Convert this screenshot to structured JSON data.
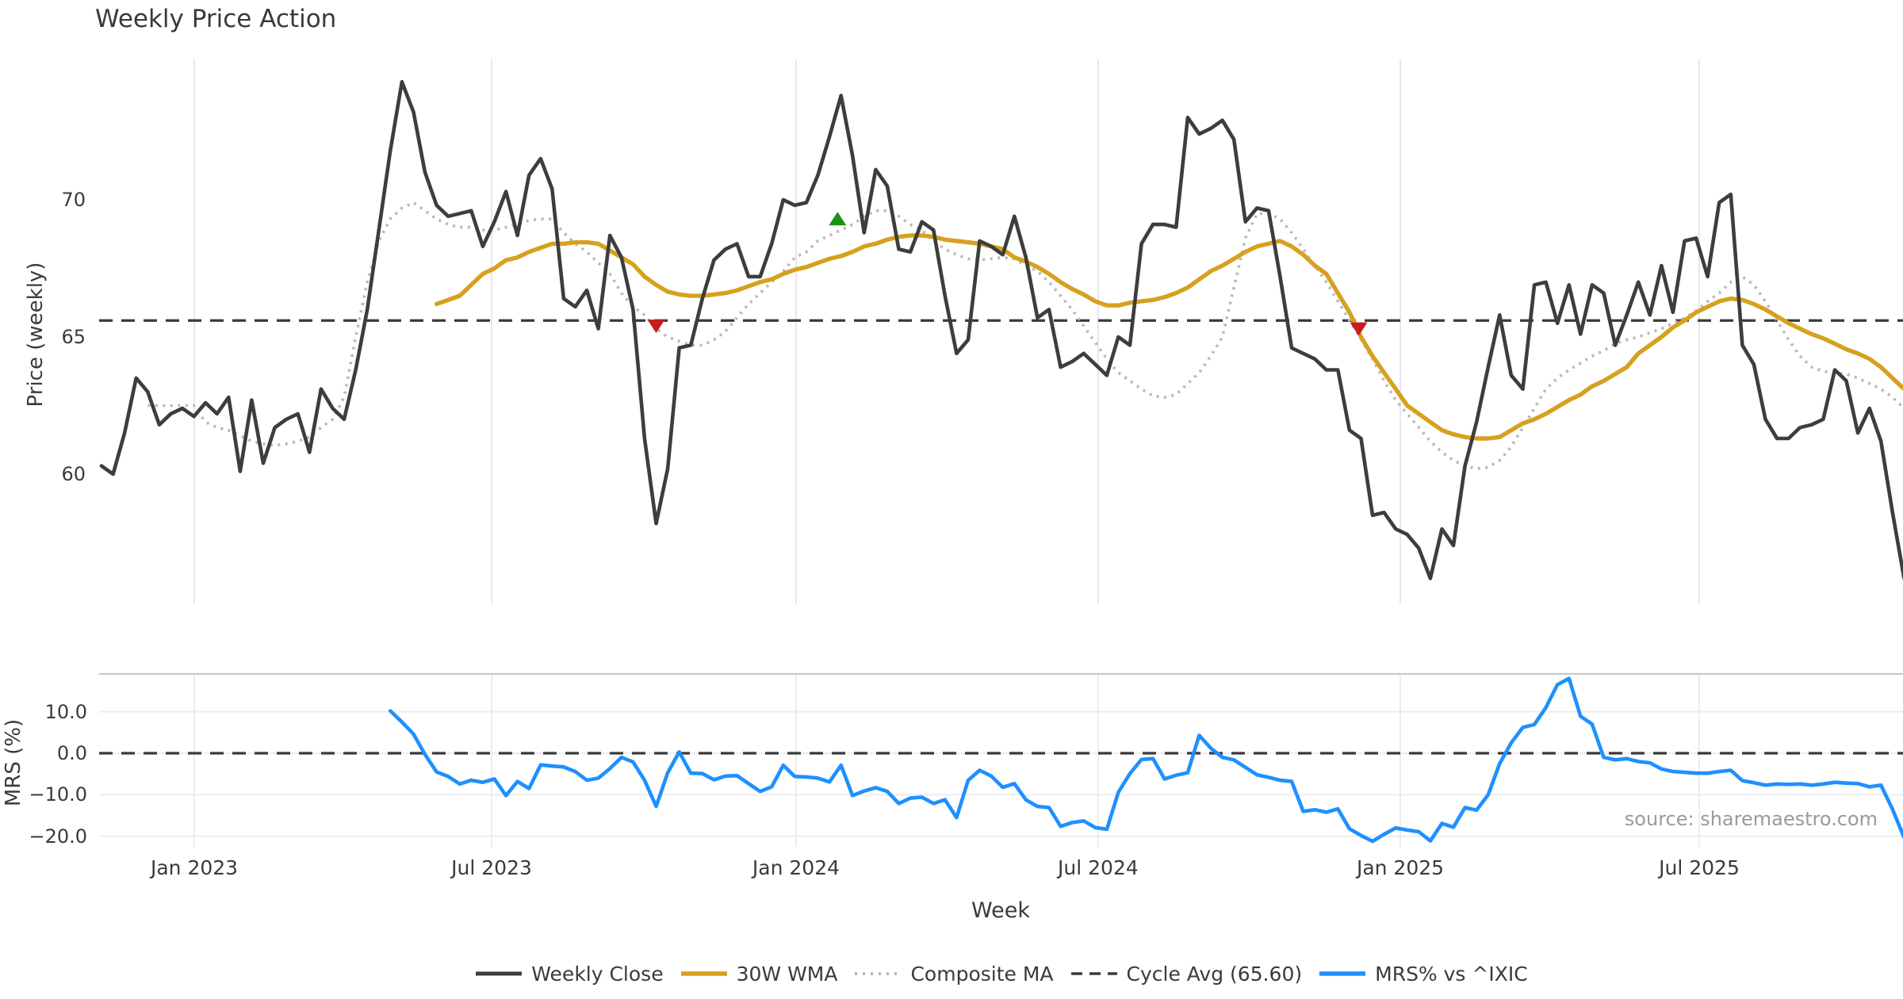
{
  "title": "Weekly Price Action",
  "xaxis": {
    "title": "Week",
    "ticks": [
      {
        "label": "Jan 2023",
        "week": 8.03
      },
      {
        "label": "Jul 2023",
        "week": 33.76
      },
      {
        "label": "Jan 2024",
        "week": 60.11
      },
      {
        "label": "Jul 2024",
        "week": 86.25
      },
      {
        "label": "Jan 2025",
        "week": 112.4
      },
      {
        "label": "Jul 2025",
        "week": 138.27
      }
    ]
  },
  "price_chart": {
    "ylabel": "Price (weekly)",
    "yticks": [
      {
        "v": 70,
        "label": "70"
      },
      {
        "v": 65,
        "label": "65"
      },
      {
        "v": 60,
        "label": "60"
      }
    ]
  },
  "mrs_chart": {
    "ylabel": "MRS (%)",
    "yticks": [
      {
        "v": 10,
        "label": "10.0"
      },
      {
        "v": 0,
        "label": "0.0"
      },
      {
        "v": -10,
        "label": "−10.0"
      },
      {
        "v": -20,
        "label": "−20.0"
      }
    ],
    "source": "source: sharemaestro.com"
  },
  "legend": {
    "items": [
      {
        "label": "Weekly Close",
        "series": "close"
      },
      {
        "label": "30W WMA",
        "series": "wma"
      },
      {
        "label": "Composite MA",
        "series": "composite"
      },
      {
        "label": "Cycle Avg (65.60)",
        "series": "cycle"
      },
      {
        "label": "MRS% vs ^IXIC",
        "series": "mrs"
      }
    ]
  },
  "colors": {
    "close": "#3d3d3d",
    "wma": "#d6a11d",
    "composite": "#b8b8b8",
    "cycle": "#3a3a3a",
    "mrs": "#1e90ff",
    "marker_up": "#149414",
    "marker_down": "#c81d1d",
    "grid": "#e7e7ec",
    "grid_h": "#ececf0",
    "spine": "#c9c9cd",
    "text": "#3a3a3a",
    "source_text": "#9a9a9a"
  },
  "chart_data": {
    "type": "line",
    "x_unit": "week_index",
    "cycle_avg": 65.6,
    "panels": [
      {
        "id": "price",
        "ylabel": "Price (weekly)",
        "ylim": [
          55.3,
          75.2
        ],
        "yticks": [
          60,
          65,
          70
        ],
        "series": [
          {
            "name": "Weekly Close",
            "key": "close",
            "start": 0,
            "values": [
              60.3,
              60.0,
              61.5,
              63.5,
              63.0,
              61.8,
              62.2,
              62.4,
              62.1,
              62.6,
              62.2,
              62.8,
              60.1,
              62.7,
              60.4,
              61.7,
              62.0,
              62.2,
              60.8,
              63.1,
              62.4,
              62.0,
              63.8,
              66.0,
              68.9,
              71.8,
              74.3,
              73.2,
              71.0,
              69.8,
              69.4,
              69.5,
              69.6,
              68.3,
              69.2,
              70.3,
              68.7,
              70.9,
              71.5,
              70.4,
              66.4,
              66.1,
              66.7,
              65.3,
              68.7,
              67.9,
              66.0,
              61.3,
              58.2,
              60.2,
              64.6,
              64.7,
              66.4,
              67.8,
              68.2,
              68.4,
              67.2,
              67.2,
              68.4,
              70.0,
              69.8,
              69.9,
              70.9,
              72.3,
              73.8,
              71.6,
              68.8,
              71.1,
              70.5,
              68.2,
              68.1,
              69.2,
              68.9,
              66.5,
              64.4,
              64.9,
              68.5,
              68.3,
              68.0,
              69.4,
              67.9,
              65.7,
              66.0,
              63.9,
              64.1,
              64.4,
              64.0,
              63.6,
              65.0,
              64.7,
              68.4,
              69.1,
              69.1,
              69.0,
              73.0,
              72.4,
              72.6,
              72.9,
              72.2,
              69.2,
              69.7,
              69.6,
              67.2,
              64.6,
              64.4,
              64.2,
              63.8,
              63.8,
              61.6,
              61.3,
              58.5,
              58.6,
              58.0,
              57.8,
              57.3,
              56.2,
              58.0,
              57.4,
              60.3,
              61.9,
              63.9,
              65.8,
              63.6,
              63.1,
              66.9,
              67.0,
              65.5,
              66.9,
              65.1,
              66.9,
              66.6,
              64.7,
              65.8,
              67.0,
              65.8,
              67.6,
              65.9,
              68.5,
              68.6,
              67.2,
              69.9,
              70.2,
              64.7,
              64.0,
              62.0,
              61.3,
              61.3,
              61.7,
              61.8,
              62.0,
              63.8,
              63.4,
              61.5,
              62.4,
              61.2,
              58.6,
              56.2
            ]
          },
          {
            "name": "30W WMA",
            "key": "wma",
            "start": 29,
            "values": [
              66.2,
              66.35,
              66.5,
              66.9,
              67.3,
              67.5,
              67.8,
              67.9,
              68.1,
              68.25,
              68.4,
              68.4,
              68.45,
              68.45,
              68.4,
              68.15,
              67.9,
              67.65,
              67.2,
              66.9,
              66.65,
              66.55,
              66.5,
              66.5,
              66.55,
              66.6,
              66.7,
              66.85,
              67.0,
              67.1,
              67.3,
              67.45,
              67.55,
              67.7,
              67.85,
              67.95,
              68.1,
              68.3,
              68.4,
              68.55,
              68.65,
              68.7,
              68.7,
              68.65,
              68.55,
              68.5,
              68.45,
              68.4,
              68.3,
              68.2,
              67.9,
              67.75,
              67.55,
              67.3,
              67.0,
              66.75,
              66.55,
              66.3,
              66.15,
              66.15,
              66.25,
              66.3,
              66.35,
              66.45,
              66.6,
              66.8,
              67.1,
              67.4,
              67.6,
              67.85,
              68.1,
              68.3,
              68.4,
              68.5,
              68.3,
              68.0,
              67.6,
              67.3,
              66.6,
              65.9,
              65.0,
              64.3,
              63.7,
              63.1,
              62.5,
              62.2,
              61.9,
              61.6,
              61.45,
              61.35,
              61.3,
              61.3,
              61.35,
              61.6,
              61.85,
              62.0,
              62.2,
              62.45,
              62.7,
              62.9,
              63.2,
              63.4,
              63.65,
              63.9,
              64.4,
              64.7,
              65.0,
              65.35,
              65.6,
              65.9,
              66.1,
              66.3,
              66.4,
              66.35,
              66.2,
              66.0,
              65.75,
              65.5,
              65.3,
              65.1,
              64.95,
              64.75,
              64.55,
              64.4,
              64.2,
              63.9,
              63.5,
              63.1
            ]
          },
          {
            "name": "Composite MA",
            "key": "composite",
            "start": 4,
            "values": [
              62.5,
              62.5,
              62.5,
              62.5,
              62.5,
              61.9,
              61.7,
              61.6,
              61.4,
              61.2,
              61.1,
              61.05,
              61.1,
              61.2,
              61.35,
              61.7,
              62.0,
              62.8,
              65.0,
              67.0,
              68.5,
              69.3,
              69.7,
              69.9,
              69.6,
              69.3,
              69.1,
              69.0,
              69.0,
              68.9,
              68.9,
              69.0,
              69.1,
              69.25,
              69.3,
              69.3,
              68.8,
              68.4,
              68.1,
              67.7,
              67.3,
              66.6,
              66.1,
              65.8,
              65.3,
              65.0,
              64.85,
              64.7,
              64.7,
              64.9,
              65.2,
              65.7,
              66.2,
              66.6,
              67.0,
              67.4,
              67.9,
              68.1,
              68.5,
              68.7,
              68.9,
              69.1,
              69.4,
              69.6,
              69.6,
              69.4,
              69.1,
              68.9,
              68.5,
              68.2,
              68.0,
              67.85,
              67.8,
              67.85,
              67.9,
              67.85,
              67.6,
              67.4,
              67.0,
              66.5,
              66.0,
              65.4,
              64.8,
              64.2,
              63.7,
              63.4,
              63.1,
              62.85,
              62.8,
              62.9,
              63.3,
              63.7,
              64.3,
              65.0,
              66.8,
              68.6,
              69.5,
              69.5,
              69.3,
              68.8,
              68.2,
              67.6,
              67.0,
              66.3,
              65.6,
              64.9,
              64.2,
              63.4,
              62.7,
              62.2,
              61.7,
              61.2,
              60.8,
              60.5,
              60.3,
              60.2,
              60.25,
              60.5,
              61.0,
              61.7,
              62.4,
              63.1,
              63.5,
              63.8,
              64.05,
              64.3,
              64.5,
              64.75,
              64.9,
              65.0,
              65.15,
              65.3,
              65.5,
              65.7,
              65.95,
              66.3,
              66.6,
              67.0,
              67.2,
              66.9,
              66.3,
              65.6,
              64.9,
              64.3,
              63.9,
              63.75,
              63.7,
              63.65,
              63.5,
              63.3,
              63.1,
              62.8,
              62.4
            ]
          },
          {
            "name": "Cycle Avg (65.60)",
            "key": "cycle",
            "hline": 65.6
          }
        ],
        "markers": [
          {
            "shape": "down",
            "week": 48.0,
            "value": 65.4
          },
          {
            "shape": "up",
            "week": 63.7,
            "value": 69.3
          },
          {
            "shape": "down",
            "week": 108.8,
            "value": 65.3
          }
        ]
      },
      {
        "id": "mrs",
        "ylabel": "MRS (%)",
        "ylim": [
          -22.5,
          19.1
        ],
        "yticks": [
          -20,
          -10,
          0,
          10
        ],
        "hline": 0.0,
        "series": [
          {
            "name": "MRS% vs ^IXIC",
            "key": "mrs",
            "start": 25,
            "values": [
              10.2,
              7.5,
              4.6,
              -0.3,
              -4.5,
              -5.6,
              -7.4,
              -6.5,
              -7.0,
              -6.2,
              -10.2,
              -6.8,
              -8.5,
              -2.8,
              -3.1,
              -3.3,
              -4.4,
              -6.5,
              -6.0,
              -3.7,
              -1.0,
              -2.1,
              -6.5,
              -12.8,
              -4.7,
              0.3,
              -4.8,
              -4.9,
              -6.4,
              -5.5,
              -5.4,
              -7.3,
              -9.2,
              -8.1,
              -2.9,
              -5.6,
              -5.7,
              -6.0,
              -6.9,
              -2.9,
              -10.2,
              -9.1,
              -8.3,
              -9.2,
              -12.1,
              -10.8,
              -10.6,
              -12.1,
              -11.2,
              -15.5,
              -6.5,
              -4.1,
              -5.5,
              -8.2,
              -7.3,
              -11.2,
              -12.8,
              -13.1,
              -17.6,
              -16.7,
              -16.3,
              -17.9,
              -18.3,
              -9.4,
              -4.9,
              -1.5,
              -1.3,
              -6.2,
              -5.3,
              -4.7,
              4.3,
              1.2,
              -1.0,
              -1.6,
              -3.4,
              -5.2,
              -5.8,
              -6.5,
              -6.8,
              -14.0,
              -13.6,
              -14.2,
              -13.4,
              -18.2,
              -19.8,
              -21.2,
              -19.5,
              -18.0,
              -18.5,
              -18.9,
              -21.1,
              -16.9,
              -17.8,
              -13.1,
              -13.7,
              -10.0,
              -2.5,
              2.5,
              6.2,
              6.9,
              11.0,
              16.5,
              18.0,
              8.9,
              7.0,
              -1.0,
              -1.6,
              -1.3,
              -2.0,
              -2.3,
              -3.8,
              -4.4,
              -4.6,
              -4.8,
              -4.8,
              -4.4,
              -4.1,
              -6.6,
              -7.1,
              -7.7,
              -7.4,
              -7.5,
              -7.4,
              -7.7,
              -7.4,
              -7.0,
              -7.2,
              -7.3,
              -8.1,
              -7.7,
              -13.5,
              -20.3
            ]
          }
        ]
      }
    ]
  }
}
